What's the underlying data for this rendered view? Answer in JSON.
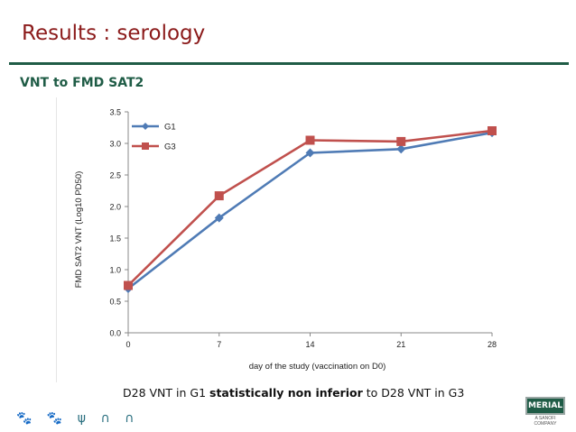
{
  "slide": {
    "title": "Results : serology",
    "subtitle": "VNT to FMD SAT2",
    "conclusion_pre": "D28 VNT in G1 ",
    "conclusion_bold": "statistically non inferior",
    "conclusion_post": " to D28 VNT in G3",
    "footer_icons": "🐾 🐾 ψ ∩ ∩",
    "logo_text": "MERIAL",
    "logo_sub": "A SANOFI COMPANY"
  },
  "chart_data": {
    "type": "line",
    "x": [
      0,
      7,
      14,
      21,
      28
    ],
    "series": [
      {
        "name": "G1",
        "values": [
          0.7,
          1.82,
          2.85,
          2.91,
          3.17
        ],
        "color": "#4f7bb5",
        "marker": "diamond"
      },
      {
        "name": "G3",
        "values": [
          0.75,
          2.17,
          3.05,
          3.03,
          3.2
        ],
        "color": "#c0504d",
        "marker": "square"
      }
    ],
    "xlabel": "day of the study (vaccination on D0)",
    "ylabel": "FMD SAT2 VNT (Log10 PD50)",
    "xticks": [
      "0",
      "7",
      "14",
      "21",
      "28"
    ],
    "yticks": [
      "0.0",
      "0.5",
      "1.0",
      "1.5",
      "2.0",
      "2.5",
      "3.0",
      "3.5"
    ],
    "ylim": [
      0,
      3.5
    ],
    "xlim": [
      0,
      28
    ],
    "grid": false,
    "legend": "top-left"
  }
}
